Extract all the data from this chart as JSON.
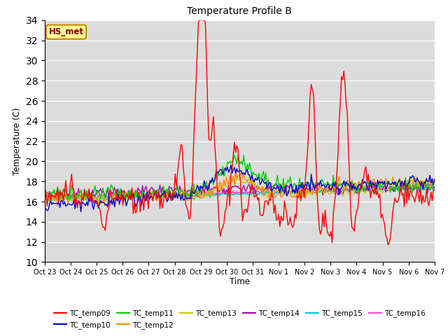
{
  "title": "Temperature Profile B",
  "xlabel": "Time",
  "ylabel": "Temperature (C)",
  "ylim": [
    10,
    34
  ],
  "yticks": [
    10,
    12,
    14,
    16,
    18,
    20,
    22,
    24,
    26,
    28,
    30,
    32,
    34
  ],
  "bg_color": "#dcdcdc",
  "annotation_text": "HS_met",
  "annotation_bg": "#ffff99",
  "annotation_border": "#cc8800",
  "series_colors": {
    "TC_temp09": "#ff0000",
    "TC_temp10": "#0000cc",
    "TC_temp11": "#00cc00",
    "TC_temp12": "#ff8800",
    "TC_temp13": "#cccc00",
    "TC_temp14": "#aa00aa",
    "TC_temp15": "#00cccc",
    "TC_temp16": "#ff44cc"
  },
  "x_tick_labels": [
    "Oct 23",
    "Oct 24",
    "Oct 25",
    "Oct 26",
    "Oct 27",
    "Oct 28",
    "Oct 29",
    "Oct 30",
    "Oct 31",
    "Nov 1",
    "Nov 2",
    "Nov 3",
    "Nov 4",
    "Nov 5",
    "Nov 6",
    "Nov 7"
  ],
  "n_points": 336,
  "figsize": [
    6.4,
    4.8
  ],
  "dpi": 100
}
